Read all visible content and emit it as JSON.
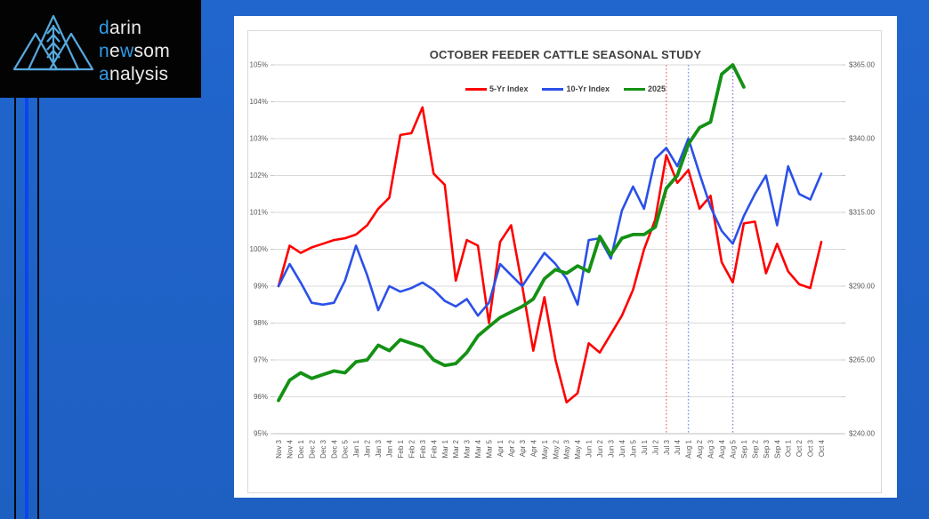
{
  "background": {
    "color": "#2063c8",
    "stripes": [
      {
        "name": "edge-stripe-black-1",
        "x": 16,
        "width": 2,
        "color": "#05070a"
      },
      {
        "name": "edge-stripe-blue",
        "x": 28,
        "width": 4,
        "color": "#0a45ef"
      },
      {
        "name": "edge-stripe-black-2",
        "x": 42,
        "width": 2,
        "color": "#05070a"
      }
    ]
  },
  "logo": {
    "accent_color": "#2d9ce8",
    "text_color": "#ececec",
    "mark_color": "#56a8dd",
    "lines": [
      [
        {
          "text": "d",
          "accent": true
        },
        {
          "text": "arin",
          "accent": false
        }
      ],
      [
        {
          "text": "n",
          "accent": true
        },
        {
          "text": "e",
          "accent": false
        },
        {
          "text": "w",
          "accent": true
        },
        {
          "text": "som",
          "accent": false
        }
      ],
      [
        {
          "text": "a",
          "accent": true
        },
        {
          "text": "nalysis",
          "accent": false
        }
      ]
    ]
  },
  "chart_data": {
    "type": "line",
    "title": "OCTOBER FEEDER CATTLE SEASONAL STUDY",
    "legend_position": "top",
    "grid": true,
    "grid_color": "#d9d9d9",
    "axis_line_color": "#bdbdbd",
    "axis_text_color": "#595959",
    "categories": [
      "Nov 3",
      "Nov 4",
      "Dec 1",
      "Dec 2",
      "Dec 3",
      "Dec 4",
      "Dec 5",
      "Jan 1",
      "Jan 2",
      "Jan 3",
      "Jan 4",
      "Feb 1",
      "Feb 2",
      "Feb 3",
      "Feb 4",
      "Mar 1",
      "Mar 2",
      "Mar 3",
      "Mar 4",
      "Mar 5",
      "Apr 1",
      "Apr 2",
      "Apr 3",
      "Apr 4",
      "May 1",
      "May 2",
      "May 3",
      "May 4",
      "Jun 1",
      "Jun 2",
      "Jun 3",
      "Jun 4",
      "Jun 5",
      "Jul 1",
      "Jul 2",
      "Jul 3",
      "Jul 4",
      "Aug 1",
      "Aug 2",
      "Aug 3",
      "Aug 4",
      "Aug 5",
      "Sep 1",
      "Sep 2",
      "Sep 3",
      "Sep 4",
      "Oct 1",
      "Oct 2",
      "Oct 3",
      "Oct 4"
    ],
    "left_axis": {
      "min": 95,
      "max": 105,
      "step": 1,
      "format": "percent",
      "ticks": [
        "95%",
        "96%",
        "97%",
        "98%",
        "99%",
        "100%",
        "101%",
        "102%",
        "103%",
        "104%",
        "105%"
      ]
    },
    "right_axis": {
      "labels": [
        "$240.00",
        "$265.00",
        "$290.00",
        "$315.00",
        "$340.00",
        "$365.00"
      ],
      "at_percent": [
        95,
        97,
        99,
        101,
        103,
        105
      ]
    },
    "series": [
      {
        "name": "5-Yr Index",
        "color": "#fe0000",
        "width": 2.6,
        "values": [
          99.0,
          100.1,
          99.9,
          100.05,
          100.15,
          100.25,
          100.3,
          100.4,
          100.65,
          101.1,
          101.4,
          103.1,
          103.15,
          103.85,
          102.05,
          101.75,
          99.15,
          100.25,
          100.1,
          98.0,
          100.2,
          100.65,
          99.0,
          97.25,
          98.7,
          97.0,
          95.85,
          96.1,
          97.45,
          97.2,
          97.7,
          98.2,
          98.9,
          100.0,
          100.8,
          102.55,
          101.8,
          102.15,
          101.1,
          101.45,
          99.65,
          99.1,
          100.7,
          100.75,
          99.35,
          100.15,
          99.4,
          99.05,
          98.95,
          100.2
        ]
      },
      {
        "name": "10-Yr Index",
        "color": "#2b50e8",
        "width": 2.6,
        "values": [
          99.0,
          99.6,
          99.1,
          98.55,
          98.5,
          98.55,
          99.15,
          100.1,
          99.3,
          98.35,
          99.0,
          98.85,
          98.95,
          99.1,
          98.9,
          98.6,
          98.45,
          98.65,
          98.2,
          98.55,
          99.6,
          99.3,
          99.0,
          99.45,
          99.9,
          99.6,
          99.2,
          98.5,
          100.25,
          100.3,
          99.75,
          101.05,
          101.7,
          101.1,
          102.45,
          102.75,
          102.25,
          103.0,
          102.05,
          101.15,
          100.5,
          100.15,
          100.9,
          101.5,
          102.0,
          100.65,
          102.25,
          101.5,
          101.35,
          102.05
        ]
      },
      {
        "name": "2025",
        "color": "#149114",
        "width": 3.8,
        "values": [
          95.9,
          96.45,
          96.65,
          96.5,
          96.6,
          96.7,
          96.65,
          96.95,
          97.0,
          97.4,
          97.25,
          97.55,
          97.45,
          97.35,
          97.0,
          96.85,
          96.9,
          97.2,
          97.65,
          97.9,
          98.15,
          98.3,
          98.45,
          98.65,
          99.2,
          99.45,
          99.35,
          99.55,
          99.4,
          100.35,
          99.85,
          100.3,
          100.4,
          100.4,
          100.6,
          101.65,
          102.0,
          102.85,
          103.3,
          103.45,
          104.75,
          105.0,
          104.4,
          null,
          null,
          null,
          null,
          null,
          null,
          null
        ]
      }
    ],
    "reference_lines": [
      {
        "category": "Jul 3",
        "color": "#f87c7c"
      },
      {
        "category": "Aug 1",
        "color": "#7e9bef"
      },
      {
        "category": "Aug 5",
        "color": "#a47fd6"
      }
    ]
  }
}
